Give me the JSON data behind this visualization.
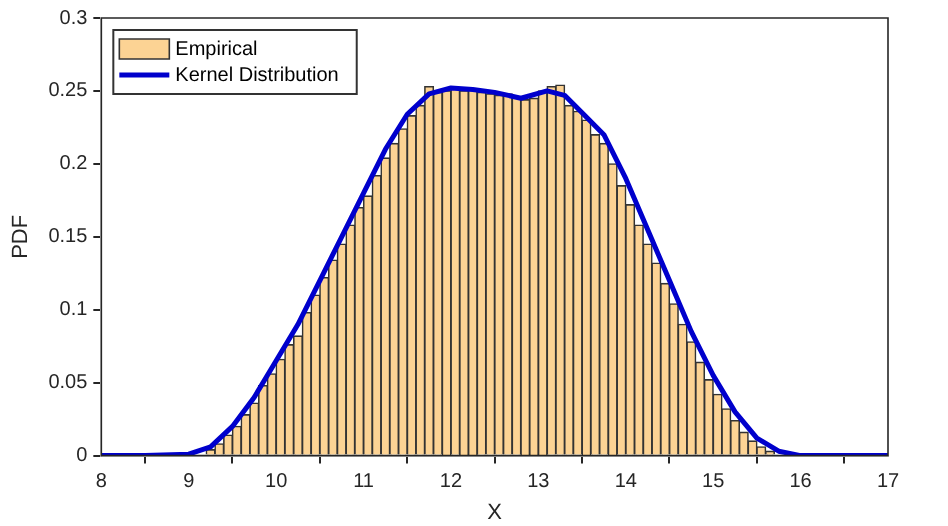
{
  "chart_data": {
    "type": "histogram",
    "xlabel": "X",
    "ylabel": "PDF",
    "legend": "top left",
    "grid": false,
    "xlim": [
      8,
      17
    ],
    "xticks": [
      8,
      9,
      10,
      11,
      12,
      13,
      14,
      15,
      16,
      17
    ],
    "ylim": [
      0,
      0.3
    ],
    "yticks": [
      0,
      0.05,
      0.1,
      0.15,
      0.2,
      0.25,
      0.3
    ],
    "bins": [
      9.2,
      9.3,
      9.4,
      9.5,
      9.6,
      9.7,
      9.8,
      9.9,
      10,
      10.1,
      10.2,
      10.3,
      10.4,
      10.5,
      10.6,
      10.7,
      10.8,
      10.9,
      11,
      11.1,
      11.2,
      11.3,
      11.4,
      11.5,
      11.6,
      11.7,
      11.8,
      11.9,
      12,
      12.1,
      12.2,
      12.3,
      12.4,
      12.5,
      12.6,
      12.7,
      12.8,
      12.9,
      13,
      13.1,
      13.2,
      13.3,
      13.4,
      13.5,
      13.6,
      13.7,
      13.8,
      13.9,
      14,
      14.1,
      14.2,
      14.3,
      14.4,
      14.5,
      14.6,
      14.7,
      14.8,
      14.9,
      15,
      15.1,
      15.2,
      15.3,
      15.4,
      15.5,
      15.6,
      15.7,
      15.8
    ],
    "series": [
      {
        "name": "Empirical",
        "color": "#fcd394",
        "values": [
          0.004,
          0.008,
          0.014,
          0.02,
          0.028,
          0.036,
          0.048,
          0.056,
          0.066,
          0.076,
          0.082,
          0.098,
          0.11,
          0.122,
          0.134,
          0.145,
          0.158,
          0.17,
          0.178,
          0.192,
          0.204,
          0.214,
          0.224,
          0.233,
          0.24,
          0.253,
          0.249,
          0.25,
          0.252,
          0.25,
          0.251,
          0.249,
          0.248,
          0.247,
          0.248,
          0.246,
          0.244,
          0.245,
          0.25,
          0.253,
          0.254,
          0.24,
          0.236,
          0.23,
          0.22,
          0.214,
          0.2,
          0.185,
          0.172,
          0.158,
          0.145,
          0.132,
          0.118,
          0.104,
          0.09,
          0.078,
          0.064,
          0.052,
          0.042,
          0.032,
          0.024,
          0.016,
          0.01,
          0.006,
          0.003,
          null
        ]
      },
      {
        "name": "Kernel Distribution",
        "type": "line",
        "color": "#0000cc",
        "x": [
          8,
          8.5,
          9,
          9.25,
          9.5,
          9.75,
          10,
          10.25,
          10.5,
          10.75,
          11,
          11.25,
          11.5,
          11.75,
          12,
          12.25,
          12.5,
          12.8,
          13.1,
          13.3,
          13.5,
          13.75,
          14,
          14.25,
          14.5,
          14.75,
          15,
          15.25,
          15.5,
          15.75,
          16,
          16.5,
          17
        ],
        "values": [
          0,
          0,
          0.001,
          0.006,
          0.02,
          0.04,
          0.065,
          0.09,
          0.12,
          0.15,
          0.18,
          0.21,
          0.234,
          0.248,
          0.252,
          0.251,
          0.249,
          0.245,
          0.25,
          0.247,
          0.235,
          0.22,
          0.19,
          0.155,
          0.12,
          0.085,
          0.055,
          0.03,
          0.012,
          0.003,
          0,
          0,
          0
        ]
      }
    ]
  }
}
